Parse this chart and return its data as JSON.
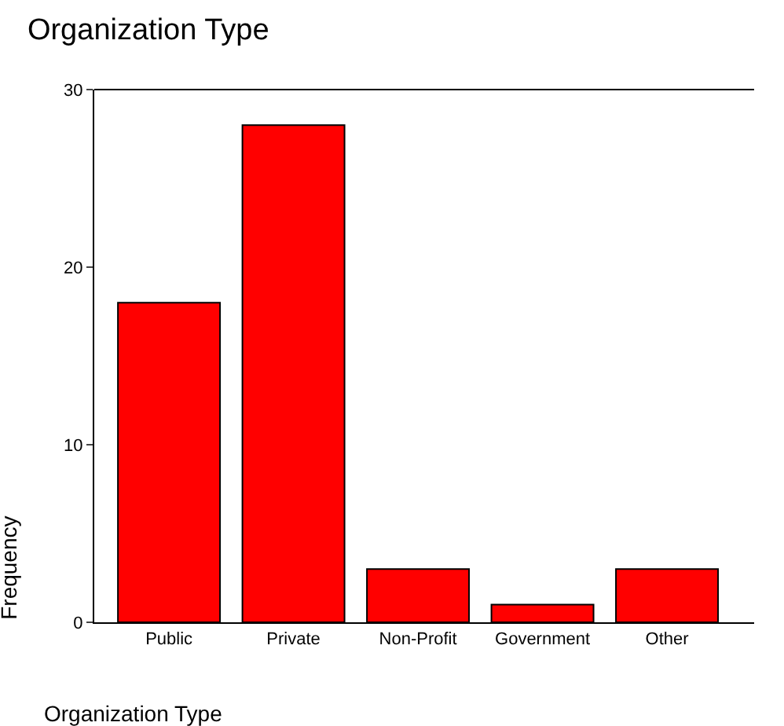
{
  "chart_data": {
    "type": "bar",
    "title": "Organization Type",
    "xlabel": "Organization Type",
    "ylabel": "Frequency",
    "categories": [
      "Public",
      "Private",
      "Non-Profit",
      "Government",
      "Other"
    ],
    "values": [
      18,
      28,
      3,
      1,
      3
    ],
    "color": "#ff0000",
    "ylim": [
      0,
      30
    ],
    "yticks": [
      0,
      10,
      20,
      30
    ]
  }
}
